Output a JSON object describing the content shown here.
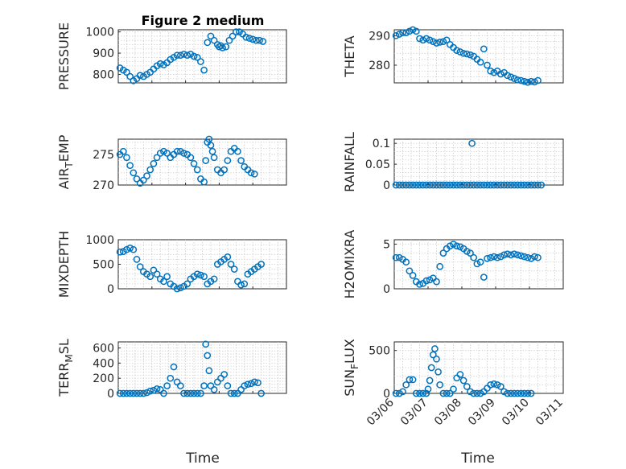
{
  "chart_data": [
    {
      "type": "scatter",
      "title": "Figure 2 medium",
      "ylabel": "PRESSURE",
      "ylim": [
        760,
        1010
      ],
      "yticks": [
        800,
        900,
        1000
      ],
      "y_tick_labels": [
        "800",
        "900",
        "1000"
      ],
      "xlim": [
        0,
        5
      ],
      "x_tick_labels": [],
      "x": [
        0.05,
        0.15,
        0.25,
        0.35,
        0.45,
        0.55,
        0.65,
        0.75,
        0.85,
        0.95,
        1.05,
        1.15,
        1.25,
        1.35,
        1.45,
        1.55,
        1.65,
        1.75,
        1.85,
        1.95,
        2.05,
        2.15,
        2.25,
        2.35,
        2.45,
        2.55,
        2.65,
        2.75,
        2.85,
        2.95,
        3.0,
        3.05,
        3.1,
        3.2,
        3.3,
        3.4,
        3.5,
        3.6,
        3.7,
        3.8,
        3.9,
        4.0,
        4.1,
        4.2,
        4.3
      ],
      "y": [
        830,
        820,
        810,
        790,
        770,
        780,
        795,
        790,
        800,
        810,
        825,
        840,
        850,
        845,
        855,
        870,
        880,
        890,
        890,
        895,
        890,
        895,
        885,
        880,
        860,
        820,
        950,
        980,
        960,
        940,
        930,
        935,
        925,
        930,
        960,
        980,
        1000,
        1000,
        990,
        975,
        970,
        965,
        960,
        960,
        955
      ]
    },
    {
      "type": "scatter",
      "ylabel": "THETA",
      "ylim": [
        274,
        292
      ],
      "yticks": [
        280,
        290
      ],
      "y_tick_labels": [
        "280",
        "290"
      ],
      "xlim": [
        0,
        5
      ],
      "x_tick_labels": [],
      "x": [
        0.05,
        0.15,
        0.25,
        0.35,
        0.45,
        0.55,
        0.65,
        0.75,
        0.85,
        0.95,
        1.05,
        1.15,
        1.25,
        1.35,
        1.45,
        1.55,
        1.65,
        1.75,
        1.85,
        1.95,
        2.05,
        2.15,
        2.25,
        2.35,
        2.45,
        2.55,
        2.65,
        2.75,
        2.85,
        2.95,
        3.05,
        3.15,
        3.25,
        3.35,
        3.45,
        3.55,
        3.65,
        3.75,
        3.85,
        3.95,
        4.05,
        4.15,
        4.25
      ],
      "y": [
        290,
        290.5,
        291,
        291,
        291.5,
        292,
        291.5,
        289,
        288.5,
        289,
        288.5,
        288,
        287.5,
        287.8,
        288,
        288.5,
        287,
        286,
        285,
        284.5,
        284,
        283.8,
        283.5,
        283,
        282,
        281,
        285.5,
        280,
        278,
        277.5,
        278,
        277,
        277.5,
        276.5,
        276,
        275.5,
        275,
        274.8,
        274.5,
        274.2,
        274.5,
        274.3,
        274.8
      ]
    },
    {
      "type": "scatter",
      "ylabel": "AIR_TEMP",
      "ylim": [
        270,
        277.5
      ],
      "yticks": [
        270,
        275
      ],
      "y_tick_labels": [
        "270",
        "275"
      ],
      "xlim": [
        0,
        5
      ],
      "x_tick_labels": [],
      "x": [
        0.05,
        0.15,
        0.25,
        0.35,
        0.45,
        0.55,
        0.65,
        0.75,
        0.85,
        0.95,
        1.05,
        1.15,
        1.25,
        1.35,
        1.45,
        1.55,
        1.65,
        1.75,
        1.85,
        1.95,
        2.05,
        2.15,
        2.25,
        2.35,
        2.45,
        2.55,
        2.6,
        2.65,
        2.7,
        2.75,
        2.8,
        2.85,
        2.95,
        3.05,
        3.15,
        3.25,
        3.35,
        3.45,
        3.55,
        3.65,
        3.75,
        3.85,
        3.95,
        4.05
      ],
      "y": [
        275,
        275.5,
        274.5,
        273.2,
        272,
        271,
        270.3,
        270.8,
        271.5,
        272.5,
        273.5,
        274.5,
        275.2,
        275.5,
        275.2,
        274.5,
        275,
        275.5,
        275.5,
        275.2,
        275,
        274.5,
        273.5,
        272.5,
        271,
        270.5,
        274,
        277,
        277.5,
        276.5,
        275.5,
        274.5,
        272.5,
        272,
        272.5,
        274,
        275.5,
        276,
        275.5,
        274,
        273,
        272.5,
        272,
        271.8
      ]
    },
    {
      "type": "scatter",
      "ylabel": "RAINFALL",
      "ylim": [
        0,
        0.11
      ],
      "yticks": [
        0,
        0.05,
        0.1
      ],
      "y_tick_labels": [
        "0",
        "0.05",
        "0.1"
      ],
      "xlim": [
        0,
        5
      ],
      "x_tick_labels": [],
      "x": [
        0.05,
        0.15,
        0.25,
        0.35,
        0.45,
        0.55,
        0.65,
        0.75,
        0.85,
        0.95,
        1.05,
        1.15,
        1.25,
        1.35,
        1.45,
        1.55,
        1.65,
        1.75,
        1.85,
        1.95,
        2.05,
        2.15,
        2.25,
        2.3,
        2.35,
        2.45,
        2.55,
        2.65,
        2.75,
        2.85,
        2.95,
        3.05,
        3.15,
        3.25,
        3.35,
        3.45,
        3.55,
        3.65,
        3.75,
        3.85,
        3.95,
        4.05,
        4.15,
        4.25,
        4.35
      ],
      "y": [
        0,
        0,
        0,
        0,
        0,
        0,
        0,
        0,
        0,
        0,
        0,
        0,
        0,
        0,
        0,
        0,
        0,
        0,
        0,
        0,
        0,
        0,
        0,
        0.1,
        0,
        0,
        0,
        0,
        0,
        0,
        0,
        0,
        0,
        0,
        0,
        0,
        0,
        0,
        0,
        0,
        0,
        0,
        0,
        0,
        0
      ]
    },
    {
      "type": "scatter",
      "ylabel": "MIXDEPTH",
      "ylim": [
        0,
        1000
      ],
      "yticks": [
        0,
        500,
        1000
      ],
      "y_tick_labels": [
        "0",
        "500",
        "1000"
      ],
      "xlim": [
        0,
        5
      ],
      "x_tick_labels": [],
      "x": [
        0.05,
        0.15,
        0.25,
        0.35,
        0.45,
        0.55,
        0.65,
        0.75,
        0.85,
        0.95,
        1.05,
        1.15,
        1.25,
        1.35,
        1.45,
        1.55,
        1.65,
        1.75,
        1.85,
        1.95,
        2.05,
        2.15,
        2.25,
        2.35,
        2.45,
        2.55,
        2.65,
        2.75,
        2.85,
        2.95,
        3.05,
        3.15,
        3.25,
        3.35,
        3.45,
        3.55,
        3.65,
        3.75,
        3.85,
        3.95,
        4.05,
        4.15,
        4.25
      ],
      "y": [
        750,
        760,
        800,
        830,
        800,
        600,
        450,
        350,
        300,
        250,
        380,
        300,
        200,
        150,
        250,
        100,
        50,
        0,
        20,
        50,
        100,
        200,
        250,
        300,
        280,
        250,
        100,
        150,
        200,
        500,
        550,
        600,
        650,
        500,
        400,
        150,
        80,
        100,
        300,
        350,
        400,
        450,
        500
      ]
    },
    {
      "type": "scatter",
      "ylabel": "H2OMIXRA",
      "ylim": [
        0,
        5.5
      ],
      "yticks": [
        0,
        5
      ],
      "y_tick_labels": [
        "0",
        "5"
      ],
      "xlim": [
        0,
        5
      ],
      "x_tick_labels": [],
      "x": [
        0.05,
        0.15,
        0.25,
        0.35,
        0.45,
        0.55,
        0.65,
        0.75,
        0.85,
        0.95,
        1.05,
        1.15,
        1.25,
        1.35,
        1.45,
        1.55,
        1.65,
        1.75,
        1.85,
        1.95,
        2.05,
        2.15,
        2.25,
        2.35,
        2.45,
        2.55,
        2.65,
        2.75,
        2.85,
        2.95,
        3.05,
        3.15,
        3.25,
        3.35,
        3.45,
        3.55,
        3.65,
        3.75,
        3.85,
        3.95,
        4.05,
        4.15,
        4.25
      ],
      "y": [
        3.5,
        3.5,
        3.3,
        3.0,
        2.0,
        1.5,
        0.8,
        0.5,
        0.6,
        0.9,
        1.0,
        1.2,
        0.8,
        2.5,
        4.0,
        4.5,
        4.8,
        5.0,
        4.8,
        4.7,
        4.5,
        4.2,
        4.0,
        3.5,
        2.8,
        3.0,
        1.3,
        3.4,
        3.5,
        3.6,
        3.5,
        3.6,
        3.8,
        3.9,
        3.8,
        3.9,
        3.8,
        3.7,
        3.6,
        3.5,
        3.4,
        3.6,
        3.5
      ]
    },
    {
      "type": "scatter",
      "ylabel": "TERR_MSL",
      "ylim": [
        0,
        680
      ],
      "yticks": [
        0,
        200,
        400,
        600
      ],
      "y_tick_labels": [
        "0",
        "200",
        "400",
        "600"
      ],
      "xlim": [
        0,
        5
      ],
      "x_tick_labels": [],
      "x": [
        0.05,
        0.15,
        0.25,
        0.35,
        0.45,
        0.55,
        0.65,
        0.75,
        0.85,
        0.95,
        1.05,
        1.15,
        1.25,
        1.35,
        1.45,
        1.55,
        1.65,
        1.75,
        1.85,
        1.95,
        2.05,
        2.15,
        2.25,
        2.35,
        2.45,
        2.55,
        2.6,
        2.65,
        2.7,
        2.75,
        2.85,
        2.95,
        3.05,
        3.15,
        3.25,
        3.35,
        3.45,
        3.55,
        3.65,
        3.75,
        3.85,
        3.95,
        4.05,
        4.15,
        4.25
      ],
      "y": [
        0,
        0,
        0,
        0,
        0,
        0,
        0,
        0,
        10,
        30,
        40,
        60,
        50,
        0,
        100,
        200,
        350,
        150,
        100,
        0,
        0,
        0,
        0,
        0,
        0,
        100,
        650,
        500,
        300,
        100,
        50,
        150,
        200,
        250,
        100,
        0,
        0,
        0,
        50,
        100,
        120,
        130,
        150,
        140,
        0
      ]
    },
    {
      "type": "scatter",
      "ylabel": "SUN_FLUX",
      "ylim": [
        0,
        600
      ],
      "yticks": [
        0,
        500
      ],
      "y_tick_labels": [
        "0",
        "500"
      ],
      "xlim": [
        0,
        5
      ],
      "x_tick_labels": [
        "03/06",
        "03/07",
        "03/08",
        "03/09",
        "03/10",
        "03/11"
      ],
      "x": [
        0.05,
        0.15,
        0.25,
        0.35,
        0.45,
        0.55,
        0.65,
        0.75,
        0.85,
        0.95,
        1.0,
        1.05,
        1.1,
        1.15,
        1.2,
        1.25,
        1.3,
        1.35,
        1.45,
        1.55,
        1.65,
        1.75,
        1.85,
        1.95,
        2.05,
        2.15,
        2.25,
        2.35,
        2.45,
        2.55,
        2.65,
        2.75,
        2.85,
        2.95,
        3.05,
        3.15,
        3.25,
        3.35,
        3.45,
        3.55,
        3.65,
        3.75,
        3.85,
        3.95,
        4.05
      ],
      "y": [
        0,
        0,
        20,
        100,
        160,
        160,
        0,
        0,
        0,
        0,
        50,
        150,
        300,
        450,
        520,
        400,
        250,
        100,
        0,
        0,
        0,
        50,
        180,
        220,
        150,
        80,
        20,
        0,
        0,
        0,
        20,
        60,
        100,
        110,
        100,
        80,
        20,
        0,
        0,
        0,
        0,
        0,
        0,
        0,
        0
      ]
    }
  ],
  "x_axis_title_left": "Time",
  "x_axis_title_right": "Time",
  "colors": {
    "marker": "#0072BD",
    "axes": "#262626",
    "grid": "#c8c8c8"
  }
}
